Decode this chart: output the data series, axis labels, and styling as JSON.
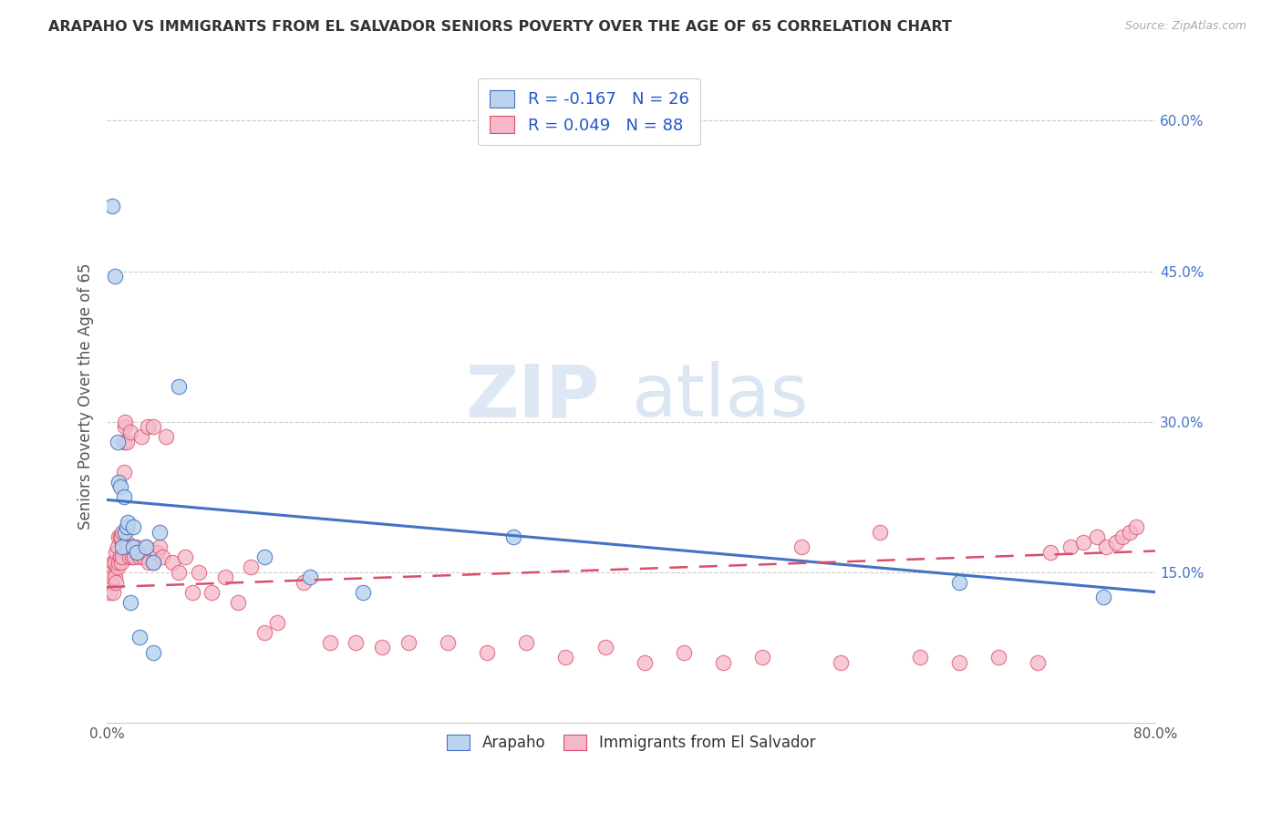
{
  "title": "ARAPAHO VS IMMIGRANTS FROM EL SALVADOR SENIORS POVERTY OVER THE AGE OF 65 CORRELATION CHART",
  "source": "Source: ZipAtlas.com",
  "ylabel": "Seniors Poverty Over the Age of 65",
  "xlim": [
    0,
    0.8
  ],
  "ylim": [
    0,
    0.65
  ],
  "yticks_right": [
    0.15,
    0.3,
    0.45,
    0.6
  ],
  "ytick_labels_right": [
    "15.0%",
    "30.0%",
    "45.0%",
    "60.0%"
  ],
  "legend_labels": [
    "Arapaho",
    "Immigrants from El Salvador"
  ],
  "r_arapaho": -0.167,
  "n_arapaho": 26,
  "r_salvador": 0.049,
  "n_salvador": 88,
  "arapaho_color": "#bad4ed",
  "salvador_color": "#f5b8c8",
  "arapaho_line_color": "#4472c4",
  "salvador_line_color": "#d94f6a",
  "watermark_zip": "ZIP",
  "watermark_atlas": "atlas",
  "arapaho_x": [
    0.004,
    0.006,
    0.008,
    0.009,
    0.01,
    0.012,
    0.013,
    0.014,
    0.015,
    0.016,
    0.018,
    0.02,
    0.02,
    0.023,
    0.025,
    0.03,
    0.035,
    0.035,
    0.04,
    0.055,
    0.12,
    0.155,
    0.195,
    0.31,
    0.65,
    0.76
  ],
  "arapaho_y": [
    0.515,
    0.445,
    0.28,
    0.24,
    0.235,
    0.175,
    0.225,
    0.19,
    0.195,
    0.2,
    0.12,
    0.175,
    0.195,
    0.17,
    0.085,
    0.175,
    0.16,
    0.07,
    0.19,
    0.335,
    0.165,
    0.145,
    0.13,
    0.185,
    0.14,
    0.125
  ],
  "salvador_x": [
    0.002,
    0.003,
    0.003,
    0.004,
    0.005,
    0.005,
    0.006,
    0.006,
    0.007,
    0.007,
    0.008,
    0.008,
    0.009,
    0.009,
    0.01,
    0.01,
    0.011,
    0.011,
    0.012,
    0.012,
    0.013,
    0.013,
    0.014,
    0.014,
    0.015,
    0.015,
    0.016,
    0.017,
    0.018,
    0.019,
    0.02,
    0.021,
    0.022,
    0.023,
    0.025,
    0.026,
    0.027,
    0.028,
    0.03,
    0.031,
    0.032,
    0.035,
    0.035,
    0.038,
    0.04,
    0.042,
    0.045,
    0.05,
    0.055,
    0.06,
    0.065,
    0.07,
    0.08,
    0.09,
    0.1,
    0.11,
    0.12,
    0.13,
    0.15,
    0.17,
    0.19,
    0.21,
    0.23,
    0.26,
    0.29,
    0.32,
    0.35,
    0.38,
    0.41,
    0.44,
    0.47,
    0.5,
    0.53,
    0.56,
    0.59,
    0.62,
    0.65,
    0.68,
    0.71,
    0.72,
    0.735,
    0.745,
    0.755,
    0.762,
    0.77,
    0.775,
    0.78,
    0.785
  ],
  "salvador_y": [
    0.13,
    0.14,
    0.155,
    0.145,
    0.13,
    0.16,
    0.145,
    0.16,
    0.14,
    0.17,
    0.155,
    0.175,
    0.16,
    0.185,
    0.165,
    0.185,
    0.16,
    0.185,
    0.165,
    0.19,
    0.25,
    0.28,
    0.295,
    0.3,
    0.18,
    0.28,
    0.175,
    0.165,
    0.29,
    0.165,
    0.175,
    0.165,
    0.175,
    0.17,
    0.165,
    0.285,
    0.17,
    0.165,
    0.175,
    0.295,
    0.16,
    0.295,
    0.16,
    0.17,
    0.175,
    0.165,
    0.285,
    0.16,
    0.15,
    0.165,
    0.13,
    0.15,
    0.13,
    0.145,
    0.12,
    0.155,
    0.09,
    0.1,
    0.14,
    0.08,
    0.08,
    0.075,
    0.08,
    0.08,
    0.07,
    0.08,
    0.065,
    0.075,
    0.06,
    0.07,
    0.06,
    0.065,
    0.175,
    0.06,
    0.19,
    0.065,
    0.06,
    0.065,
    0.06,
    0.17,
    0.175,
    0.18,
    0.185,
    0.175,
    0.18,
    0.185,
    0.19,
    0.195
  ]
}
